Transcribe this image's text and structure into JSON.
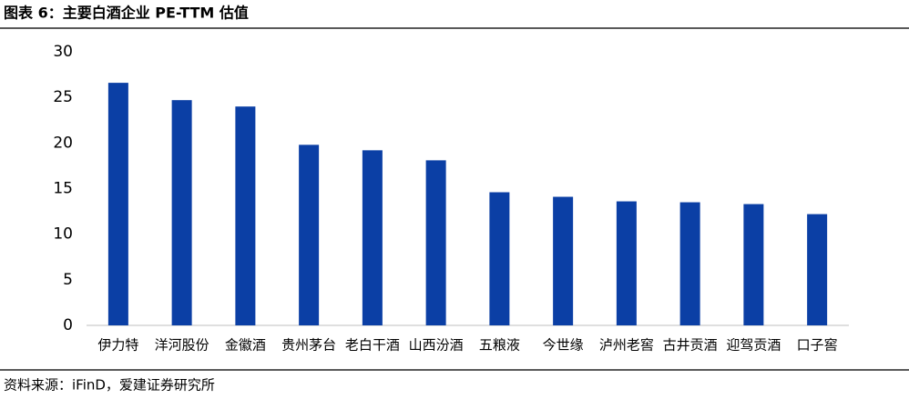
{
  "chart_data": {
    "type": "bar",
    "title": "图表 6：主要白酒企业 PE-TTM 估值",
    "source": "资料来源：iFinD，爱建证券研究所",
    "categories": [
      "伊力特",
      "洋河股份",
      "金徽酒",
      "贵州茅台",
      "老白干酒",
      "山西汾酒",
      "五粮液",
      "今世缘",
      "泸州老窖",
      "古井贡酒",
      "迎驾贡酒",
      "口子窖"
    ],
    "values": [
      26.6,
      24.7,
      24.0,
      19.8,
      19.2,
      18.1,
      14.6,
      14.1,
      13.6,
      13.5,
      13.3,
      12.2
    ],
    "color": "#0b3fa5",
    "ylim": [
      0,
      30
    ],
    "yticks": [
      0,
      5,
      10,
      15,
      20,
      25,
      30
    ],
    "grid": false
  }
}
